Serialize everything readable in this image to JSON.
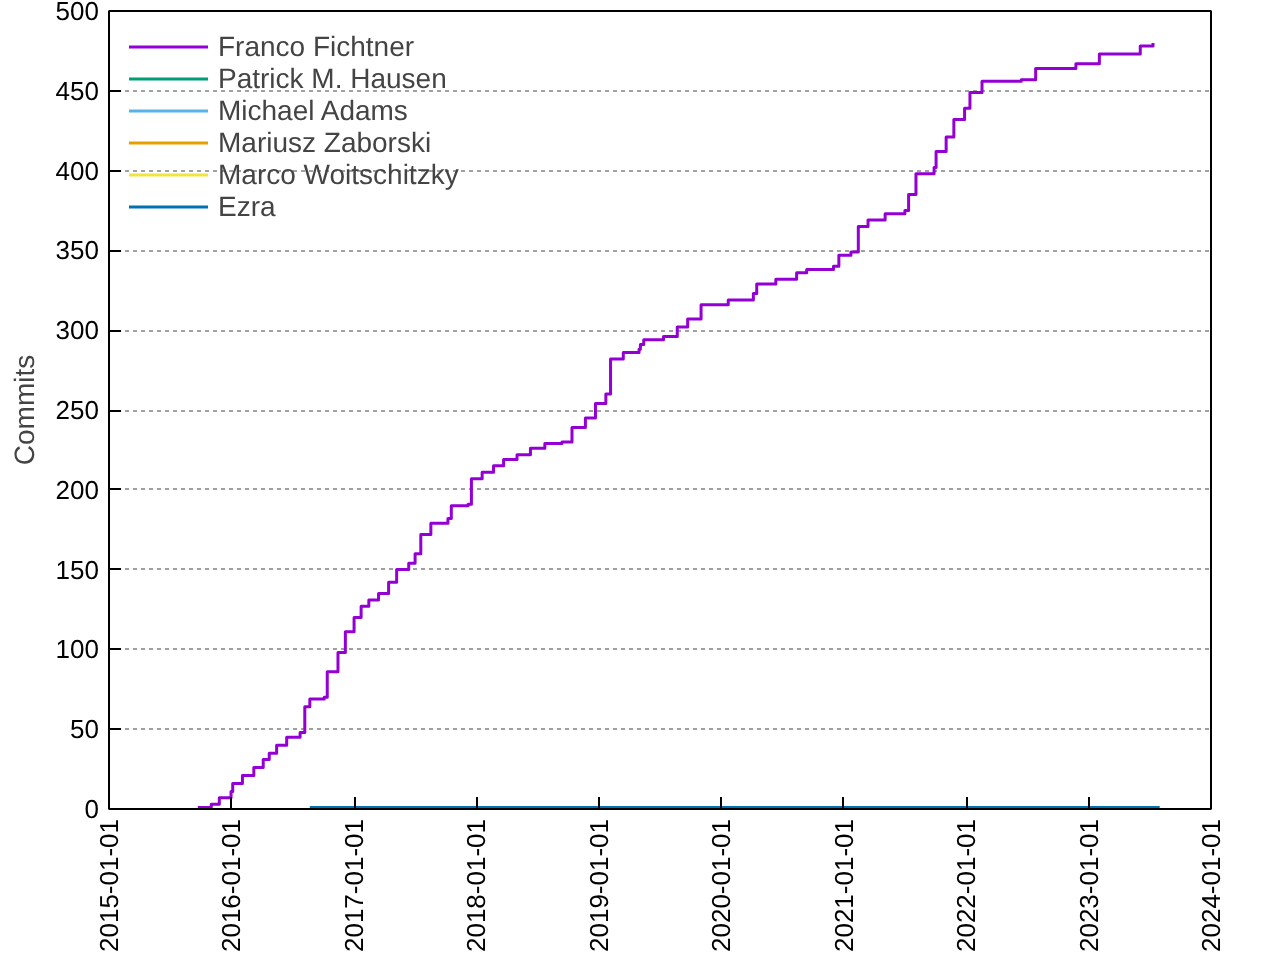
{
  "chart_data": {
    "type": "step",
    "ylabel": "Commits",
    "xlim": [
      "2015-01-01",
      "2024-01-01"
    ],
    "xticks": [
      "2015-01-01",
      "2016-01-01",
      "2017-01-01",
      "2018-01-01",
      "2019-01-01",
      "2020-01-01",
      "2021-01-01",
      "2022-01-01",
      "2023-01-01",
      "2024-01-01"
    ],
    "ylim": [
      0,
      500
    ],
    "yticks": [
      0,
      50,
      100,
      150,
      200,
      250,
      300,
      350,
      400,
      450,
      500
    ],
    "grid": "y",
    "legend": "top left",
    "line_style": "solid",
    "series": [
      {
        "name": "Franco Fichtner",
        "color": "#9400d3",
        "x": [
          "2015-09-23",
          "2015-11-02",
          "2015-11-26",
          "2015-12-31",
          "2016-01-05",
          "2016-02-03",
          "2016-03-08",
          "2016-04-05",
          "2016-04-23",
          "2016-05-15",
          "2016-06-14",
          "2016-07-24",
          "2016-08-07",
          "2016-08-22",
          "2016-10-04",
          "2016-10-13",
          "2016-11-14",
          "2016-12-06",
          "2017-01-01",
          "2017-01-22",
          "2017-02-14",
          "2017-03-15",
          "2017-04-14",
          "2017-05-08",
          "2017-06-13",
          "2017-07-02",
          "2017-07-19",
          "2017-08-18",
          "2017-10-08",
          "2017-10-18",
          "2017-12-07",
          "2017-12-17",
          "2018-01-18",
          "2018-02-21",
          "2018-03-23",
          "2018-05-02",
          "2018-06-11",
          "2018-07-24",
          "2018-09-13",
          "2018-10-13",
          "2018-11-22",
          "2018-12-22",
          "2019-01-22",
          "2019-02-05",
          "2019-03-15",
          "2019-05-01",
          "2019-05-05",
          "2019-05-15",
          "2019-07-13",
          "2019-08-23",
          "2019-09-23",
          "2019-11-02",
          "2020-01-22",
          "2020-04-06",
          "2020-04-16",
          "2020-06-12",
          "2020-08-13",
          "2020-09-12",
          "2020-12-01",
          "2020-12-17",
          "2021-01-22",
          "2021-02-13",
          "2021-03-14",
          "2021-05-04",
          "2021-07-02",
          "2021-07-13",
          "2021-08-04",
          "2021-09-27",
          "2021-10-03",
          "2021-11-02",
          "2021-11-25",
          "2021-12-27",
          "2022-01-12",
          "2022-02-17",
          "2022-06-14",
          "2022-07-27",
          "2022-11-24",
          "2023-02-02",
          "2023-06-04",
          "2023-07-12"
        ],
        "values": [
          1,
          3,
          7,
          11,
          16,
          21,
          26,
          31,
          35,
          40,
          45,
          48,
          64,
          69,
          70,
          86,
          98,
          111,
          120,
          127,
          131,
          135,
          142,
          150,
          154,
          160,
          172,
          179,
          182,
          190,
          191,
          207,
          211,
          215,
          219,
          222,
          226,
          229,
          230,
          239,
          245,
          254,
          260,
          282,
          286,
          288,
          291,
          294,
          296,
          302,
          307,
          316,
          319,
          323,
          329,
          332,
          336,
          338,
          340,
          347,
          349,
          365,
          369,
          373,
          375,
          385,
          398,
          402,
          412,
          421,
          432,
          439,
          449,
          456,
          457,
          464,
          467,
          473,
          478,
          480
        ]
      },
      {
        "name": "Patrick M. Hausen",
        "color": "#009e73",
        "values": [
          null
        ]
      },
      {
        "name": "Michael Adams",
        "color": "#56b4e9",
        "values": [
          null
        ]
      },
      {
        "name": "Mariusz Zaborski",
        "color": "#e69f00",
        "values": [
          null
        ]
      },
      {
        "name": "Marco Woitschitzky",
        "color": "#f0e442",
        "values": [
          null
        ]
      },
      {
        "name": "Ezra",
        "color": "#0072b2",
        "x": [
          "2016-08-22",
          "2023-08-01"
        ],
        "values": [
          1,
          1
        ]
      }
    ]
  }
}
